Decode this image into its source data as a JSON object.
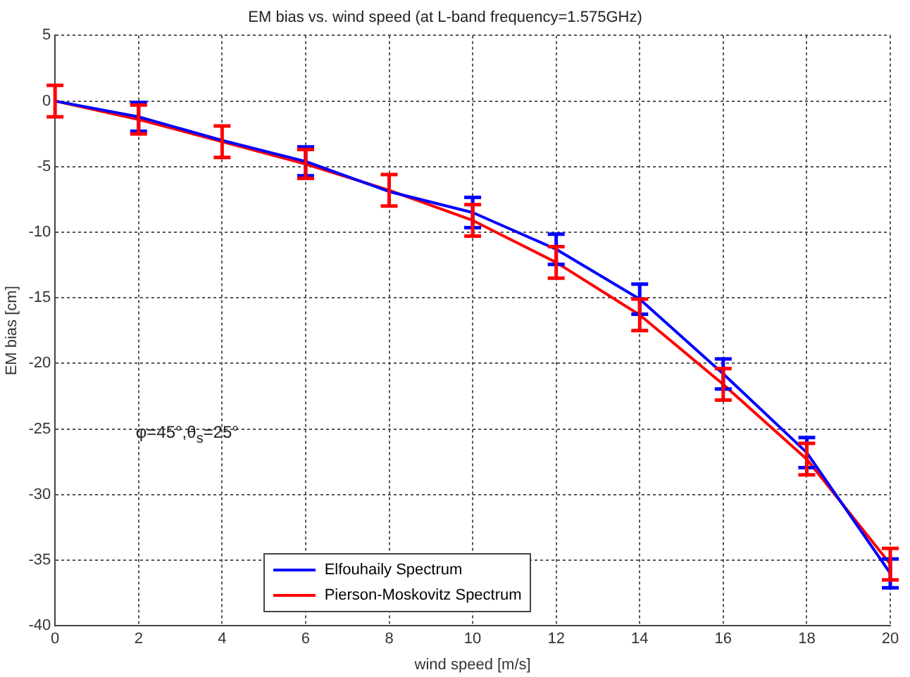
{
  "chart_data": {
    "type": "line",
    "title": "EM bias vs. wind speed (at L-band frequency=1.575GHz)",
    "xlabel": "wind speed [m/s]",
    "ylabel": "EM bias [cm]",
    "x": [
      0,
      2,
      4,
      6,
      8,
      10,
      12,
      14,
      16,
      18,
      20
    ],
    "series": [
      {
        "name": "Elfouhaily Spectrum",
        "color": "#0000ff",
        "values": [
          0,
          -1.2,
          -3.0,
          -4.6,
          -6.9,
          -8.5,
          -11.3,
          -15.1,
          -20.8,
          -26.8,
          -36.0
        ],
        "errors": [
          null,
          1.1,
          null,
          1.1,
          null,
          1.15,
          1.15,
          1.15,
          1.15,
          1.15,
          1.1
        ]
      },
      {
        "name": "Pierson-Moskovitz Spectrum",
        "color": "#ff0000",
        "values": [
          0,
          -1.4,
          -3.1,
          -4.8,
          -6.8,
          -9.1,
          -12.3,
          -16.3,
          -21.6,
          -27.3,
          -35.3
        ],
        "errors": [
          1.2,
          1.1,
          1.2,
          1.1,
          1.2,
          1.2,
          1.2,
          1.2,
          1.2,
          1.2,
          1.2
        ]
      }
    ],
    "xlim": [
      0,
      20
    ],
    "xticks": [
      0,
      2,
      4,
      6,
      8,
      10,
      12,
      14,
      16,
      18,
      20
    ],
    "ylim": [
      -40,
      5
    ],
    "yticks": [
      -40,
      -35,
      -30,
      -25,
      -20,
      -15,
      -10,
      -5,
      0,
      5
    ],
    "annotations": [
      "φ=45°,θ$_{s}$=25°"
    ],
    "grid": true,
    "legend": "bottom",
    "marker": "none",
    "line_style": "solid"
  }
}
